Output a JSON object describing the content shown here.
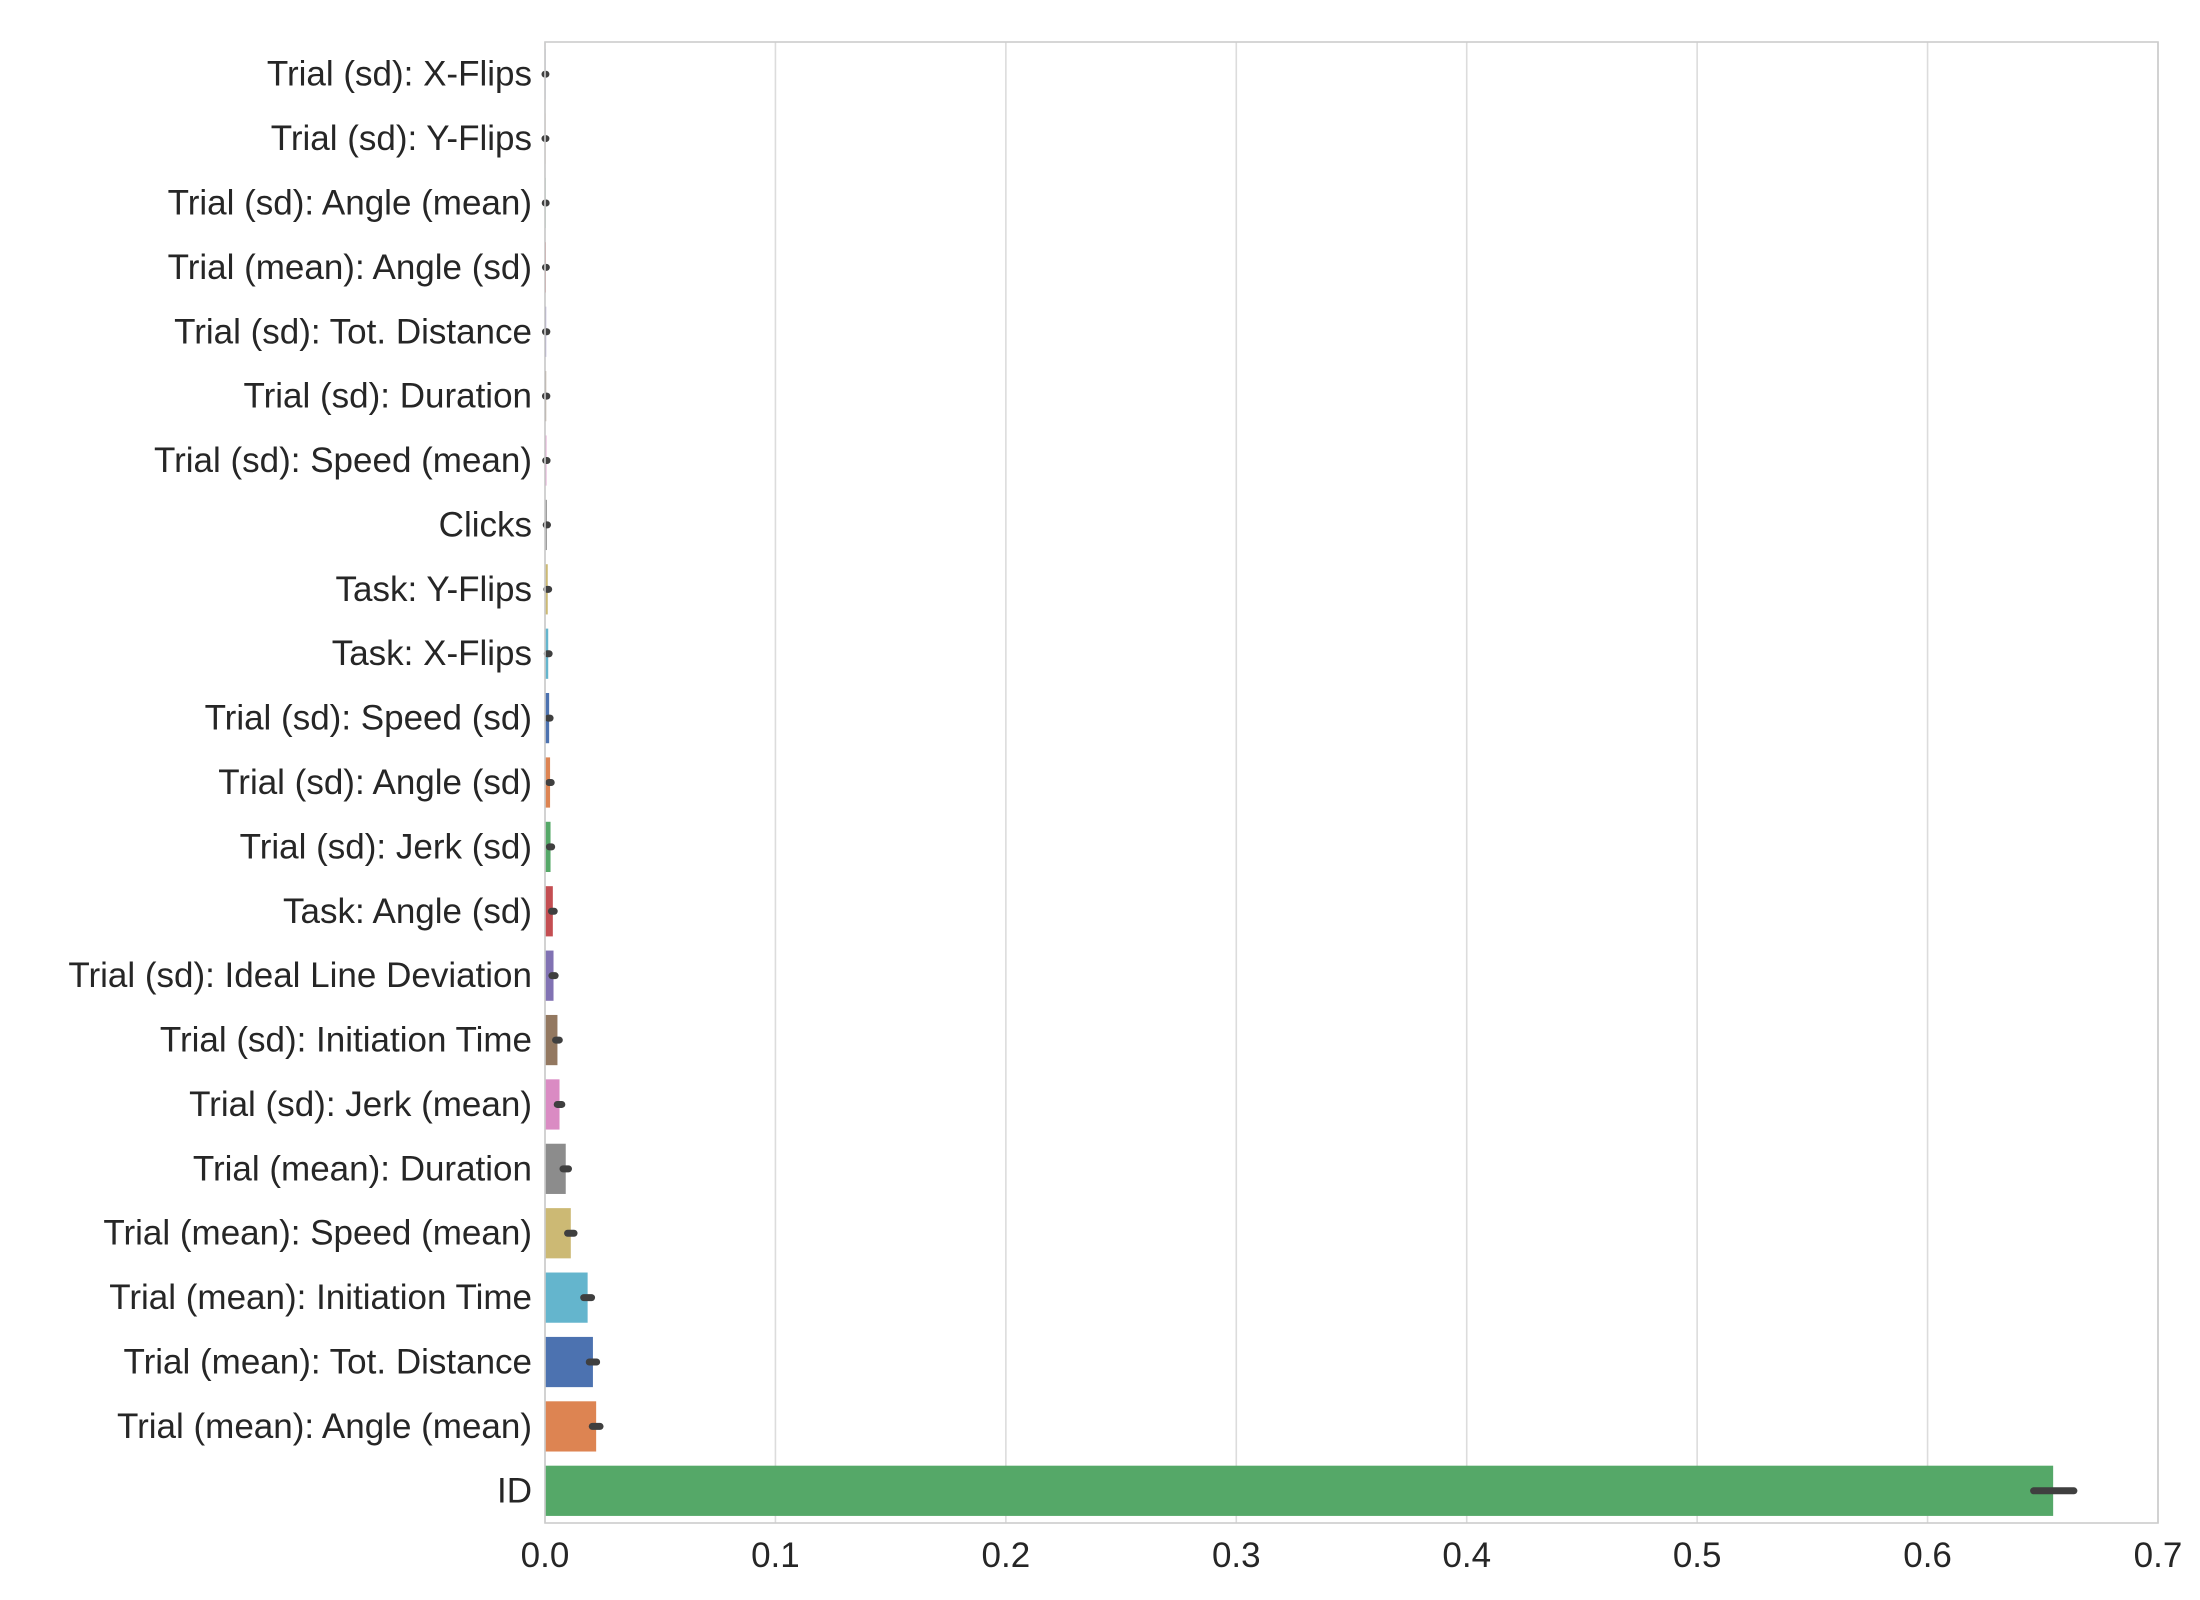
{
  "chart_data": {
    "type": "bar",
    "orientation": "horizontal",
    "title": "",
    "xlabel": "",
    "ylabel": "",
    "xlim": [
      0,
      0.7
    ],
    "xticks": [
      0.0,
      0.1,
      0.2,
      0.3,
      0.4,
      0.5,
      0.6,
      0.7
    ],
    "xtick_labels": [
      "0.0",
      "0.1",
      "0.2",
      "0.3",
      "0.4",
      "0.5",
      "0.6",
      "0.7"
    ],
    "grid": "vertical",
    "error_bars": true,
    "categories": [
      "Trial (sd): X-Flips",
      "Trial (sd): Y-Flips",
      "Trial (sd): Angle (mean)",
      "Trial (mean): Angle (sd)",
      "Trial (sd): Tot. Distance",
      "Trial (sd): Duration",
      "Trial (sd): Speed (mean)",
      "Clicks",
      "Task: Y-Flips",
      "Task: X-Flips",
      "Trial (sd): Speed (sd)",
      "Trial (sd): Angle (sd)",
      "Trial (sd): Jerk (sd)",
      "Task: Angle (sd)",
      "Trial (sd): Ideal Line Deviation",
      "Trial (sd): Initiation Time",
      "Trial (sd): Jerk (mean)",
      "Trial (mean): Duration",
      "Trial (mean): Speed (mean)",
      "Trial (mean): Initiation Time",
      "Trial (mean): Tot. Distance",
      "Trial (mean): Angle (mean)",
      "ID"
    ],
    "values": [
      0.0002,
      0.0002,
      0.0003,
      0.0004,
      0.0005,
      0.0005,
      0.0006,
      0.0008,
      0.0012,
      0.0014,
      0.0018,
      0.0022,
      0.0024,
      0.0034,
      0.0037,
      0.0054,
      0.0063,
      0.009,
      0.0112,
      0.0185,
      0.0208,
      0.0222,
      0.6545
    ],
    "error_low": [
      0.0,
      0.0,
      0.0001,
      0.0002,
      0.0002,
      0.0002,
      0.0003,
      0.0005,
      0.0008,
      0.001,
      0.0014,
      0.0017,
      0.0019,
      0.0028,
      0.003,
      0.0046,
      0.0053,
      0.0078,
      0.0098,
      0.0168,
      0.0192,
      0.0205,
      0.646
    ],
    "error_high": [
      0.0004,
      0.0004,
      0.0005,
      0.0006,
      0.0008,
      0.0008,
      0.0009,
      0.0011,
      0.0016,
      0.0018,
      0.0022,
      0.0027,
      0.0029,
      0.004,
      0.0044,
      0.0062,
      0.0073,
      0.0102,
      0.0126,
      0.0202,
      0.0224,
      0.0239,
      0.6635
    ],
    "colors": [
      "#4c72b0",
      "#dd8452",
      "#55a868",
      "#c44e52",
      "#8172b3",
      "#937860",
      "#da8bc3",
      "#8c8c8c",
      "#ccb974",
      "#64b5cd",
      "#4c72b0",
      "#dd8452",
      "#55a868",
      "#c44e52",
      "#8172b3",
      "#937860",
      "#da8bc3",
      "#8c8c8c",
      "#ccb974",
      "#64b5cd",
      "#4c72b0",
      "#dd8452",
      "#55a868"
    ]
  }
}
